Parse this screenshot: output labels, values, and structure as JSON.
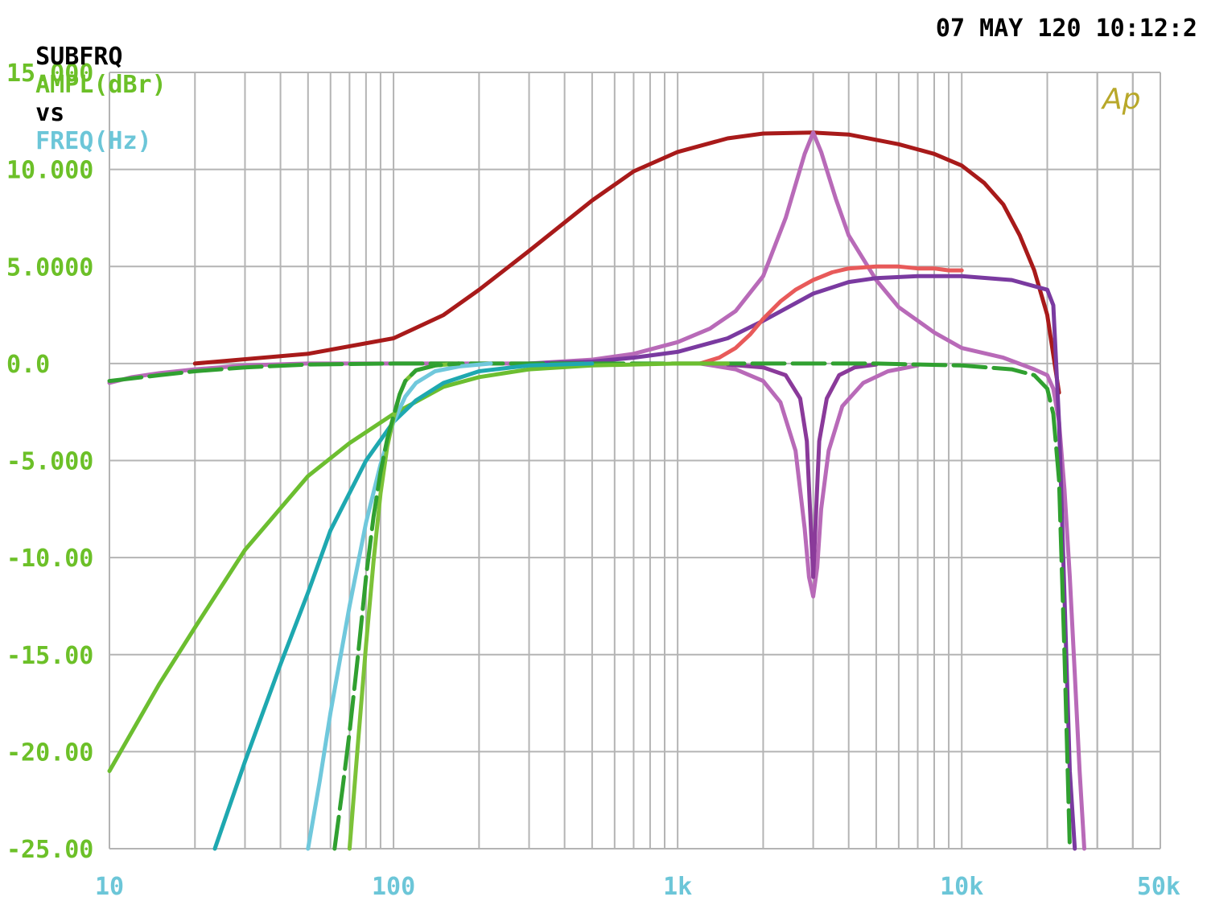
{
  "header": {
    "name": "SUBFRQ",
    "ylabel": "AMPL(dBr)",
    "vs": "vs",
    "xlabel": "FREQ(Hz)",
    "timestamp": "07 MAY 120 10:12:2"
  },
  "logo_text": "Ap",
  "colors": {
    "black": "#000000",
    "ylabel": "#6cc028",
    "xlabel": "#6cc6d8",
    "grid": "#b4b4b4"
  },
  "chart_data": {
    "type": "line",
    "xscale": "log",
    "xlim": [
      10,
      50000
    ],
    "ylim": [
      -25,
      15
    ],
    "grid": true,
    "ytick_values": [
      15,
      10,
      5,
      0,
      -5,
      -10,
      -15,
      -20,
      -25
    ],
    "ytick_labels": [
      "15.000",
      "10.000",
      "5.0000",
      "0.0",
      "-5.000",
      "-10.00",
      "-15.00",
      "-20.00",
      "-25.00"
    ],
    "xtick_values": [
      10,
      100,
      1000,
      10000,
      50000
    ],
    "xtick_labels": [
      "10",
      "100",
      "1k",
      "10k",
      "50k"
    ],
    "series": [
      {
        "color": "#a81a1a",
        "x": [
          20,
          50,
          100,
          150,
          200,
          300,
          500,
          700,
          1000,
          1500,
          2000,
          3000,
          4000,
          6000,
          8000,
          10000,
          12000,
          14000,
          16000,
          18000,
          20000,
          22000
        ],
        "y": [
          0,
          0.5,
          1.3,
          2.5,
          3.8,
          5.8,
          8.4,
          9.9,
          10.9,
          11.6,
          11.85,
          11.9,
          11.8,
          11.3,
          10.8,
          10.2,
          9.3,
          8.2,
          6.6,
          4.8,
          2.5,
          -1.5
        ]
      },
      {
        "color": "#b86ab8",
        "x": [
          10,
          12,
          15,
          20,
          30,
          50,
          100,
          300,
          500,
          700,
          1000,
          1300,
          1600,
          2000,
          2400,
          2800,
          3000,
          3200,
          3600,
          4000,
          5000,
          6000,
          8000,
          10000,
          14000,
          18000,
          20000,
          21000,
          22000,
          23000,
          24000,
          25000,
          26000,
          27000
        ],
        "y": [
          -1,
          -0.7,
          -0.5,
          -0.3,
          -0.1,
          0,
          0,
          0,
          0.2,
          0.5,
          1.1,
          1.8,
          2.7,
          4.5,
          7.5,
          10.8,
          11.9,
          10.9,
          8.5,
          6.6,
          4.3,
          2.9,
          1.6,
          0.8,
          0.3,
          -0.3,
          -0.6,
          -1.3,
          -3,
          -6.5,
          -11,
          -16,
          -21,
          -25
        ]
      },
      {
        "color": "#7a3aa0",
        "x": [
          300,
          500,
          700,
          1000,
          1500,
          2000,
          3000,
          4000,
          5000,
          7000,
          10000,
          15000,
          20000,
          21000,
          22000,
          23000,
          24000,
          25000
        ],
        "y": [
          0,
          0.1,
          0.3,
          0.6,
          1.3,
          2.2,
          3.6,
          4.2,
          4.4,
          4.5,
          4.5,
          4.3,
          3.8,
          3,
          -3,
          -12,
          -21,
          -25
        ]
      },
      {
        "color": "#e85a5a",
        "x": [
          1200,
          1400,
          1600,
          1800,
          2000,
          2300,
          2600,
          3000,
          3500,
          4000,
          5000,
          6000,
          7000,
          8000,
          9000,
          10000
        ],
        "y": [
          0,
          0.3,
          0.8,
          1.5,
          2.3,
          3.2,
          3.8,
          4.3,
          4.7,
          4.9,
          5,
          5,
          4.9,
          4.9,
          4.8,
          4.8
        ]
      },
      {
        "color": "#b86ab8",
        "x": [
          1200,
          1600,
          2000,
          2300,
          2600,
          2800,
          2900,
          3000,
          3100,
          3200,
          3400,
          3800,
          4500,
          5500,
          7000
        ],
        "y": [
          0,
          -0.3,
          -0.9,
          -2,
          -4.5,
          -8.5,
          -11,
          -12,
          -10.5,
          -7.5,
          -4.5,
          -2.2,
          -1,
          -0.4,
          -0.1
        ]
      },
      {
        "color": "#8a3a9a",
        "x": [
          1500,
          2000,
          2400,
          2700,
          2850,
          3000,
          3150,
          3350,
          3700,
          4200,
          5000
        ],
        "y": [
          -0.05,
          -0.2,
          -0.6,
          -1.8,
          -4,
          -11,
          -4,
          -1.8,
          -0.6,
          -0.2,
          -0.05
        ]
      },
      {
        "color": "#30a030",
        "dashed": true,
        "x": [
          10,
          15,
          20,
          30,
          50,
          100,
          200,
          500,
          1000,
          2000,
          5000,
          10000,
          15000,
          18000,
          20000,
          21000,
          22000,
          23000,
          24000
        ],
        "y": [
          -0.9,
          -0.6,
          -0.4,
          -0.2,
          -0.05,
          0,
          0,
          0,
          0,
          0,
          0,
          -0.1,
          -0.3,
          -0.6,
          -1.3,
          -2.6,
          -6,
          -15,
          -25
        ]
      },
      {
        "color": "#6cbe30",
        "x": [
          10,
          15,
          20,
          30,
          50,
          70,
          100,
          150,
          200,
          300,
          500,
          700,
          1000,
          1500
        ],
        "y": [
          -21,
          -16.5,
          -13.6,
          -9.6,
          -5.8,
          -4.1,
          -2.6,
          -1.2,
          -0.7,
          -0.3,
          -0.1,
          -0.05,
          0,
          0
        ]
      },
      {
        "color": "#1ea8b0",
        "x": [
          23.5,
          30,
          40,
          50,
          60,
          80,
          100,
          120,
          150,
          200,
          300,
          500
        ],
        "y": [
          -25,
          -20.5,
          -15.5,
          -11.8,
          -8.6,
          -5,
          -3,
          -1.9,
          -1,
          -0.4,
          -0.1,
          0
        ]
      },
      {
        "color": "#70c8dc",
        "x": [
          50,
          55,
          60,
          70,
          80,
          90,
          100,
          110,
          120,
          140,
          170,
          220
        ],
        "y": [
          -25,
          -21.5,
          -18,
          -12.5,
          -8.2,
          -5.2,
          -3,
          -1.7,
          -1,
          -0.4,
          -0.15,
          0
        ]
      },
      {
        "color": "#7cc238",
        "x": [
          70,
          75,
          80,
          85,
          90,
          95,
          100,
          105,
          110,
          120,
          140,
          170
        ],
        "y": [
          -25,
          -19.5,
          -14.5,
          -10.2,
          -6.7,
          -4.3,
          -2.8,
          -1.6,
          -0.9,
          -0.35,
          -0.1,
          0
        ]
      },
      {
        "color": "#30a030",
        "dashed": true,
        "x": [
          62,
          66,
          70,
          75,
          80,
          85,
          90,
          95,
          100,
          105,
          110,
          120,
          140,
          170
        ],
        "y": [
          -25,
          -22,
          -19,
          -15,
          -11,
          -7.9,
          -5.6,
          -3.9,
          -2.7,
          -1.6,
          -0.9,
          -0.35,
          -0.1,
          0
        ]
      }
    ]
  }
}
